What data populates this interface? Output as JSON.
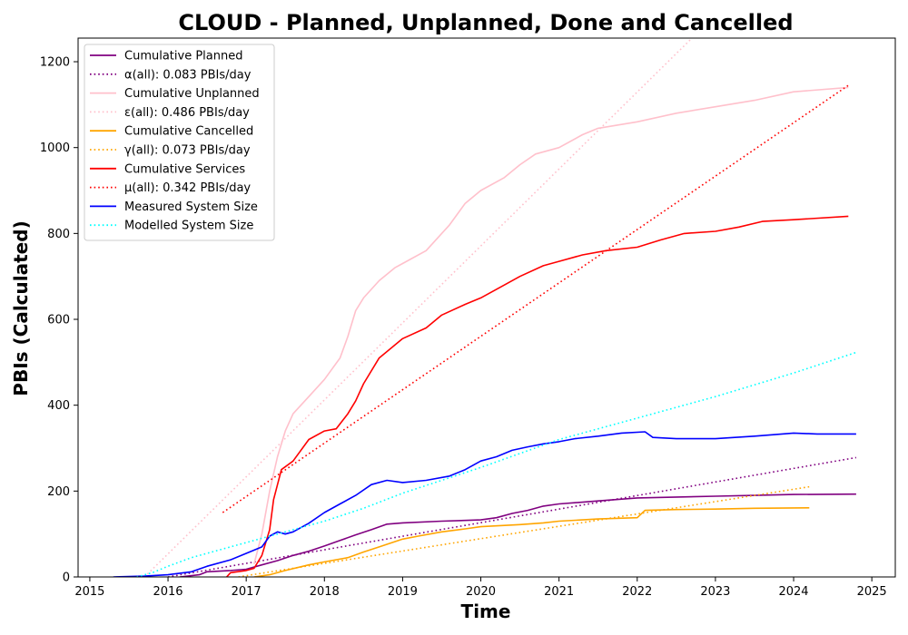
{
  "chart_data": {
    "type": "line",
    "title": "CLOUD - Planned, Unplanned, Done  and Cancelled",
    "xlabel": "Time",
    "ylabel": "PBIs (Calculated)",
    "xlim": [
      2014.85,
      2025.3
    ],
    "ylim": [
      0,
      1255
    ],
    "xticks": [
      2015,
      2016,
      2017,
      2018,
      2019,
      2020,
      2021,
      2022,
      2023,
      2024,
      2025
    ],
    "yticks": [
      0,
      200,
      400,
      600,
      800,
      1000,
      1200
    ],
    "legend_position": "top-left",
    "grid": false,
    "series": [
      {
        "name": "Cumulative Planned",
        "color": "#800080",
        "style": "solid",
        "points": [
          [
            2016.15,
            0
          ],
          [
            2016.4,
            5
          ],
          [
            2016.5,
            12
          ],
          [
            2016.8,
            15
          ],
          [
            2017.0,
            18
          ],
          [
            2017.2,
            28
          ],
          [
            2017.4,
            38
          ],
          [
            2017.6,
            50
          ],
          [
            2017.8,
            60
          ],
          [
            2018.0,
            72
          ],
          [
            2018.2,
            85
          ],
          [
            2018.4,
            98
          ],
          [
            2018.6,
            110
          ],
          [
            2018.8,
            123
          ],
          [
            2019.0,
            126
          ],
          [
            2019.5,
            130
          ],
          [
            2020.0,
            133
          ],
          [
            2020.2,
            138
          ],
          [
            2020.4,
            148
          ],
          [
            2020.6,
            155
          ],
          [
            2020.8,
            165
          ],
          [
            2021.0,
            170
          ],
          [
            2021.5,
            177
          ],
          [
            2022.0,
            184
          ],
          [
            2023.0,
            188
          ],
          [
            2023.5,
            190
          ],
          [
            2024.0,
            192
          ],
          [
            2024.8,
            193
          ]
        ]
      },
      {
        "name": "α(all): 0.083 PBIs/day",
        "color": "#800080",
        "style": "dotted",
        "points": [
          [
            2016.0,
            0
          ],
          [
            2024.8,
            278
          ]
        ]
      },
      {
        "name": "Cumulative Unplanned",
        "color": "#ffc0cb",
        "style": "solid",
        "points": [
          [
            2017.1,
            30
          ],
          [
            2017.2,
            100
          ],
          [
            2017.3,
            200
          ],
          [
            2017.4,
            280
          ],
          [
            2017.5,
            340
          ],
          [
            2017.6,
            380
          ],
          [
            2017.8,
            420
          ],
          [
            2018.0,
            460
          ],
          [
            2018.2,
            510
          ],
          [
            2018.3,
            560
          ],
          [
            2018.4,
            620
          ],
          [
            2018.5,
            650
          ],
          [
            2018.7,
            690
          ],
          [
            2018.9,
            720
          ],
          [
            2019.0,
            730
          ],
          [
            2019.3,
            760
          ],
          [
            2019.6,
            820
          ],
          [
            2019.8,
            870
          ],
          [
            2020.0,
            900
          ],
          [
            2020.3,
            930
          ],
          [
            2020.5,
            960
          ],
          [
            2020.7,
            985
          ],
          [
            2021.0,
            1000
          ],
          [
            2021.3,
            1030
          ],
          [
            2021.5,
            1045
          ],
          [
            2022.0,
            1060
          ],
          [
            2022.5,
            1080
          ],
          [
            2023.0,
            1095
          ],
          [
            2023.5,
            1110
          ],
          [
            2024.0,
            1130
          ],
          [
            2024.7,
            1140
          ]
        ]
      },
      {
        "name": "ε(all): 0.486 PBIs/day",
        "color": "#ffc0cb",
        "style": "dotted",
        "points": [
          [
            2015.7,
            0
          ],
          [
            2022.7,
            1255
          ]
        ]
      },
      {
        "name": "Cumulative Cancelled",
        "color": "#ffa500",
        "style": "solid",
        "points": [
          [
            2017.1,
            0
          ],
          [
            2017.3,
            5
          ],
          [
            2017.5,
            15
          ],
          [
            2017.8,
            28
          ],
          [
            2018.0,
            35
          ],
          [
            2018.3,
            45
          ],
          [
            2018.5,
            58
          ],
          [
            2018.7,
            70
          ],
          [
            2019.0,
            88
          ],
          [
            2019.2,
            95
          ],
          [
            2019.5,
            105
          ],
          [
            2019.8,
            112
          ],
          [
            2020.0,
            117
          ],
          [
            2020.5,
            122
          ],
          [
            2020.8,
            126
          ],
          [
            2021.0,
            130
          ],
          [
            2021.5,
            135
          ],
          [
            2022.0,
            138
          ],
          [
            2022.1,
            155
          ],
          [
            2022.5,
            157
          ],
          [
            2023.0,
            158
          ],
          [
            2023.5,
            160
          ],
          [
            2024.2,
            161
          ]
        ]
      },
      {
        "name": "γ(all): 0.073 PBIs/day",
        "color": "#ffa500",
        "style": "dotted",
        "points": [
          [
            2016.9,
            0
          ],
          [
            2024.2,
            210
          ]
        ]
      },
      {
        "name": "Cumulative Services",
        "color": "#ff0000",
        "style": "solid",
        "points": [
          [
            2016.75,
            0
          ],
          [
            2016.8,
            10
          ],
          [
            2017.0,
            15
          ],
          [
            2017.1,
            20
          ],
          [
            2017.2,
            50
          ],
          [
            2017.3,
            110
          ],
          [
            2017.35,
            180
          ],
          [
            2017.45,
            250
          ],
          [
            2017.6,
            270
          ],
          [
            2017.8,
            320
          ],
          [
            2018.0,
            340
          ],
          [
            2018.15,
            345
          ],
          [
            2018.3,
            380
          ],
          [
            2018.4,
            410
          ],
          [
            2018.5,
            450
          ],
          [
            2018.7,
            510
          ],
          [
            2018.9,
            540
          ],
          [
            2019.0,
            555
          ],
          [
            2019.3,
            580
          ],
          [
            2019.5,
            610
          ],
          [
            2019.8,
            635
          ],
          [
            2020.0,
            650
          ],
          [
            2020.3,
            680
          ],
          [
            2020.5,
            700
          ],
          [
            2020.8,
            725
          ],
          [
            2021.0,
            735
          ],
          [
            2021.3,
            750
          ],
          [
            2021.6,
            760
          ],
          [
            2022.0,
            768
          ],
          [
            2022.3,
            785
          ],
          [
            2022.6,
            800
          ],
          [
            2023.0,
            805
          ],
          [
            2023.3,
            815
          ],
          [
            2023.6,
            828
          ],
          [
            2024.0,
            832
          ],
          [
            2024.7,
            840
          ]
        ]
      },
      {
        "name": "μ(all): 0.342 PBIs/day",
        "color": "#ff0000",
        "style": "dotted",
        "points": [
          [
            2016.7,
            150
          ],
          [
            2024.7,
            1145
          ]
        ]
      },
      {
        "name": "Measured System Size",
        "color": "#0000ff",
        "style": "solid",
        "points": [
          [
            2015.3,
            0
          ],
          [
            2015.7,
            2
          ],
          [
            2016.0,
            5
          ],
          [
            2016.3,
            12
          ],
          [
            2016.5,
            25
          ],
          [
            2016.8,
            40
          ],
          [
            2017.0,
            55
          ],
          [
            2017.2,
            70
          ],
          [
            2017.3,
            95
          ],
          [
            2017.4,
            105
          ],
          [
            2017.5,
            100
          ],
          [
            2017.6,
            105
          ],
          [
            2017.8,
            125
          ],
          [
            2018.0,
            150
          ],
          [
            2018.2,
            170
          ],
          [
            2018.4,
            190
          ],
          [
            2018.6,
            215
          ],
          [
            2018.8,
            225
          ],
          [
            2019.0,
            220
          ],
          [
            2019.3,
            225
          ],
          [
            2019.6,
            235
          ],
          [
            2019.8,
            250
          ],
          [
            2020.0,
            270
          ],
          [
            2020.2,
            280
          ],
          [
            2020.4,
            295
          ],
          [
            2020.6,
            303
          ],
          [
            2020.8,
            310
          ],
          [
            2021.0,
            315
          ],
          [
            2021.2,
            322
          ],
          [
            2021.5,
            328
          ],
          [
            2021.8,
            335
          ],
          [
            2022.1,
            338
          ],
          [
            2022.2,
            325
          ],
          [
            2022.5,
            322
          ],
          [
            2023.0,
            322
          ],
          [
            2023.5,
            328
          ],
          [
            2024.0,
            335
          ],
          [
            2024.3,
            333
          ],
          [
            2024.8,
            333
          ]
        ]
      },
      {
        "name": "Modelled System Size",
        "color": "#00ffff",
        "style": "dotted",
        "points": [
          [
            2015.6,
            0
          ],
          [
            2015.8,
            10
          ],
          [
            2016.0,
            25
          ],
          [
            2016.3,
            45
          ],
          [
            2016.7,
            65
          ],
          [
            2017.0,
            80
          ],
          [
            2017.5,
            105
          ],
          [
            2018.0,
            130
          ],
          [
            2018.5,
            160
          ],
          [
            2019.0,
            195
          ],
          [
            2020.0,
            255
          ],
          [
            2021.0,
            320
          ],
          [
            2022.0,
            370
          ],
          [
            2023.0,
            420
          ],
          [
            2024.0,
            475
          ],
          [
            2024.8,
            523
          ]
        ]
      }
    ]
  }
}
